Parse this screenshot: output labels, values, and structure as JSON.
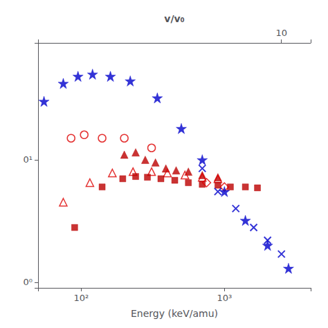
{
  "chart_data": {
    "type": "scatter",
    "xlabel": "Energy (keV/amu)",
    "x2label": "v/v₀",
    "log": true,
    "grid": false,
    "xlim": [
      50,
      4000
    ],
    "xticks": [
      {
        "value": 100,
        "label": "10²"
      },
      {
        "value": 1000,
        "label": "10³"
      }
    ],
    "ylim": [
      0.09,
      9.0
    ],
    "yticks": [
      {
        "value": 0.1,
        "label": "0⁰"
      },
      {
        "value": 1.0,
        "label": "0¹"
      }
    ],
    "x2lim": [
      1.4142135623730951,
      12.649110640673518
    ],
    "x2ticks": [
      10
    ],
    "series": [
      {
        "color": "#0000cc",
        "marker": "star",
        "x": [
          55,
          75,
          95,
          120,
          160,
          220,
          340,
          500,
          700,
          1000,
          1400,
          2000,
          2800
        ],
        "values": [
          3.0,
          4.2,
          4.8,
          5.0,
          4.8,
          4.4,
          3.2,
          1.8,
          1.0,
          0.55,
          0.32,
          0.2,
          0.13
        ]
      },
      {
        "color": "#0000cc",
        "marker": "x",
        "x": [
          700,
          900,
          1200,
          1600,
          2000,
          2500
        ],
        "values": [
          0.85,
          0.55,
          0.4,
          0.28,
          0.22,
          0.17
        ]
      },
      {
        "color": "#dd0000",
        "marker": "circle-open",
        "x": [
          85,
          105,
          140,
          200,
          310
        ],
        "values": [
          1.5,
          1.6,
          1.5,
          1.5,
          1.25
        ]
      },
      {
        "color": "#bb0000",
        "marker": "triangle",
        "x": [
          200,
          240,
          280,
          330,
          390,
          460,
          560,
          700,
          900
        ],
        "values": [
          1.1,
          1.15,
          1.0,
          0.95,
          0.85,
          0.82,
          0.8,
          0.75,
          0.72
        ]
      },
      {
        "color": "#dd0000",
        "marker": "triangle-open",
        "x": [
          75,
          115,
          165,
          230,
          310,
          400,
          530,
          700,
          900
        ],
        "values": [
          0.45,
          0.65,
          0.78,
          0.8,
          0.8,
          0.78,
          0.75,
          0.72,
          0.7
        ]
      },
      {
        "color": "#bb0000",
        "marker": "square",
        "x": [
          90,
          140,
          195,
          240,
          290,
          360,
          450,
          560,
          700,
          900,
          1100,
          1400,
          1700
        ],
        "values": [
          0.28,
          0.6,
          0.7,
          0.73,
          0.72,
          0.7,
          0.68,
          0.65,
          0.63,
          0.62,
          0.6,
          0.6,
          0.59
        ]
      },
      {
        "color": "#dd0000",
        "marker": "diamond-open",
        "x": [
          750,
          1000
        ],
        "values": [
          0.65,
          0.6
        ]
      }
    ]
  }
}
